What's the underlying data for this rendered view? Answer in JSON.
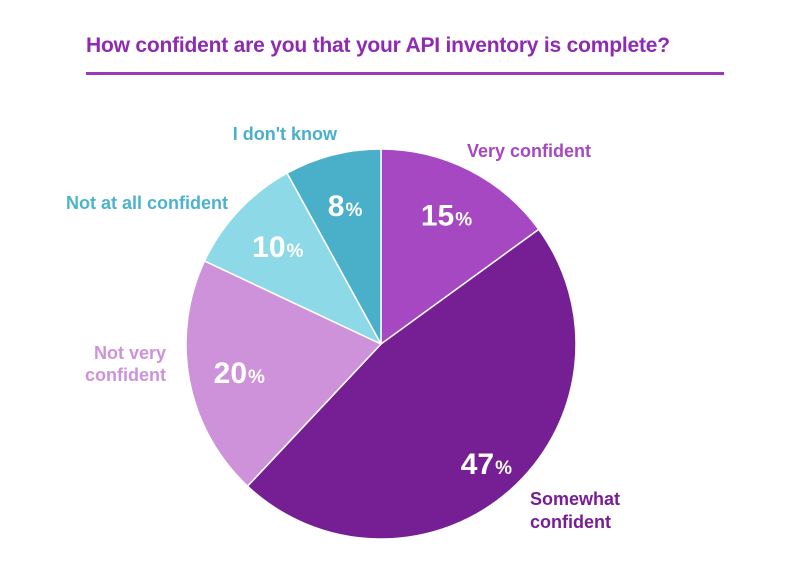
{
  "chart_data": {
    "type": "pie",
    "title": "How confident are you that your API inventory is complete?",
    "start_angle_deg": 0,
    "direction": "clockwise",
    "slices": [
      {
        "category": "Very confident",
        "label_lines": [
          "Very confident"
        ],
        "value": 15,
        "display": "15",
        "unit": "%",
        "color": "#A548C1",
        "label_color": "#A548C1"
      },
      {
        "category": "Somewhat confident",
        "label_lines": [
          "Somewhat",
          "confident"
        ],
        "value": 47,
        "display": "47",
        "unit": "%",
        "color": "#761E93",
        "label_color": "#761E93"
      },
      {
        "category": "Not very confident",
        "label_lines": [
          "Not very",
          "confident"
        ],
        "value": 20,
        "display": "20",
        "unit": "%",
        "color": "#CE92DA",
        "label_color": "#CE92DA"
      },
      {
        "category": "Not at all confident",
        "label_lines": [
          "Not at all confident"
        ],
        "value": 10,
        "display": "10",
        "unit": "%",
        "color": "#8DD9E7",
        "label_color": "#4DB3CB"
      },
      {
        "category": "I don't know",
        "label_lines": [
          "I don't know"
        ],
        "value": 8,
        "display": "8",
        "unit": "%",
        "color": "#4AAFC9",
        "label_color": "#4AAFC9"
      }
    ]
  },
  "colors": {
    "title": "#8E2BB0",
    "rule": "#9B38BC",
    "slice_border": "#ffffff"
  }
}
